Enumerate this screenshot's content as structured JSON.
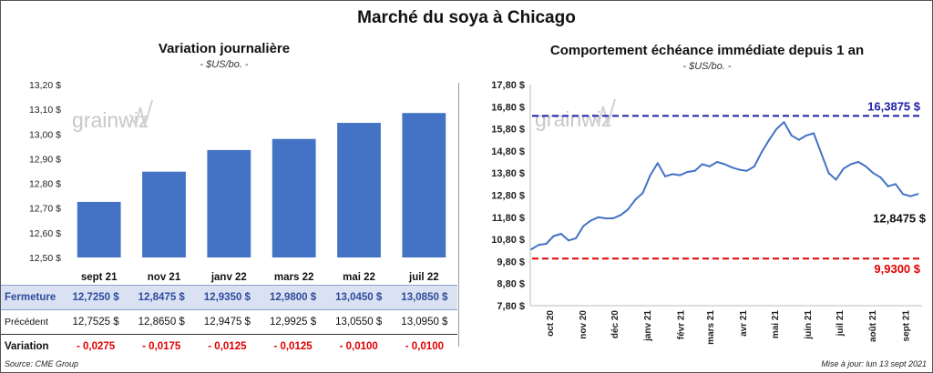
{
  "title": "Marché du soya à Chicago",
  "left": {
    "title": "Variation  journalière",
    "subtitle": "- $US/bo. -"
  },
  "right": {
    "title": "Comportement  échéance immédiate depuis 1 an",
    "subtitle": "- $US/bo. -"
  },
  "watermark": "grainwiz",
  "table": {
    "rows": [
      {
        "label": "Fermeture",
        "cells": [
          "12,7250  $",
          "12,8475  $",
          "12,9350  $",
          "12,9800  $",
          "13,0450  $",
          "13,0850  $"
        ]
      },
      {
        "label": "Précédent",
        "cells": [
          "12,7525  $",
          "12,8650  $",
          "12,9475  $",
          "12,9925  $",
          "13,0550  $",
          "13,0950  $"
        ]
      },
      {
        "label": "Variation",
        "cells": [
          "- 0,0275",
          "- 0,0175",
          "- 0,0125",
          "- 0,0125",
          "- 0,0100",
          "- 0,0100"
        ]
      }
    ]
  },
  "footer": {
    "source": "Source: CME Group",
    "updated": "Mise à jour: lun 13 sept 2021"
  },
  "colors": {
    "bar": "#4472c4",
    "line": "#4472c4",
    "max_line": "#1f1fa8",
    "min_line": "#e00000",
    "close_row": "#d9e1f2"
  },
  "chart_data": [
    {
      "type": "bar",
      "title": "Variation  journalière",
      "subtitle": "- $US/bo. -",
      "categories": [
        "sept 21",
        "nov 21",
        "janv 22",
        "mars 22",
        "mai 22",
        "juil 22"
      ],
      "values": [
        12.725,
        12.8475,
        12.935,
        12.98,
        13.045,
        13.085
      ],
      "ylim": [
        12.5,
        13.2
      ],
      "yticks": [
        12.5,
        12.6,
        12.7,
        12.8,
        12.9,
        13.0,
        13.1,
        13.2
      ],
      "ytick_labels": [
        "12,50 $",
        "12,60 $",
        "12,70 $",
        "12,80 $",
        "12,90 $",
        "13,00 $",
        "13,10 $",
        "13,20 $"
      ],
      "grid": false
    },
    {
      "type": "line",
      "title": "Comportement  échéance immédiate depuis 1 an",
      "subtitle": "- $US/bo. -",
      "ylim": [
        7.8,
        17.8
      ],
      "yticks": [
        7.8,
        8.8,
        9.8,
        10.8,
        11.8,
        12.8,
        13.8,
        14.8,
        15.8,
        16.8,
        17.8
      ],
      "ytick_labels": [
        "7,80 $",
        "8,80 $",
        "9,80 $",
        "10,80 $",
        "11,80 $",
        "12,80 $",
        "13,80 $",
        "14,80 $",
        "15,80 $",
        "16,80 $",
        "17,80 $"
      ],
      "xticks": [
        "oct 20",
        "nov 20",
        "déc 20",
        "janv 21",
        "févr 21",
        "mars 21",
        "avr 21",
        "mai 21",
        "juin 21",
        "juil 21",
        "août 21",
        "sept 21"
      ],
      "x": [
        "2020-09-14",
        "2020-09-21",
        "2020-09-28",
        "2020-10-05",
        "2020-10-12",
        "2020-10-19",
        "2020-10-26",
        "2020-11-02",
        "2020-11-09",
        "2020-11-16",
        "2020-11-23",
        "2020-11-30",
        "2020-12-07",
        "2020-12-14",
        "2020-12-21",
        "2020-12-28",
        "2021-01-04",
        "2021-01-11",
        "2021-01-18",
        "2021-01-25",
        "2021-02-01",
        "2021-02-08",
        "2021-02-15",
        "2021-02-22",
        "2021-03-01",
        "2021-03-08",
        "2021-03-15",
        "2021-03-22",
        "2021-03-29",
        "2021-04-05",
        "2021-04-12",
        "2021-04-19",
        "2021-04-26",
        "2021-05-03",
        "2021-05-10",
        "2021-05-17",
        "2021-05-24",
        "2021-05-31",
        "2021-06-07",
        "2021-06-14",
        "2021-06-21",
        "2021-06-28",
        "2021-07-05",
        "2021-07-12",
        "2021-07-19",
        "2021-07-26",
        "2021-08-02",
        "2021-08-09",
        "2021-08-16",
        "2021-08-23",
        "2021-08-30",
        "2021-09-06",
        "2021-09-13"
      ],
      "series": [
        {
          "values": [
            10.35,
            10.55,
            10.6,
            10.95,
            11.05,
            10.75,
            10.85,
            11.4,
            11.65,
            11.8,
            11.75,
            11.75,
            11.9,
            12.15,
            12.6,
            12.9,
            13.7,
            14.25,
            13.65,
            13.75,
            13.7,
            13.85,
            13.9,
            14.2,
            14.1,
            14.3,
            14.2,
            14.05,
            13.95,
            13.9,
            14.1,
            14.75,
            15.3,
            15.8,
            16.1,
            15.5,
            15.3,
            15.5,
            15.6,
            14.7,
            13.8,
            13.5,
            14.0,
            14.2,
            14.3,
            14.1,
            13.8,
            13.6,
            13.2,
            13.3,
            12.85,
            12.75,
            12.85
          ]
        }
      ],
      "reference_lines": [
        {
          "value": 16.3875,
          "label": "16,3875  $",
          "color": "#1f1fa8"
        },
        {
          "value": 9.93,
          "label": "9,9300  $",
          "color": "#e00000"
        }
      ],
      "last_value_label": "12,8475 $",
      "grid": false
    }
  ]
}
